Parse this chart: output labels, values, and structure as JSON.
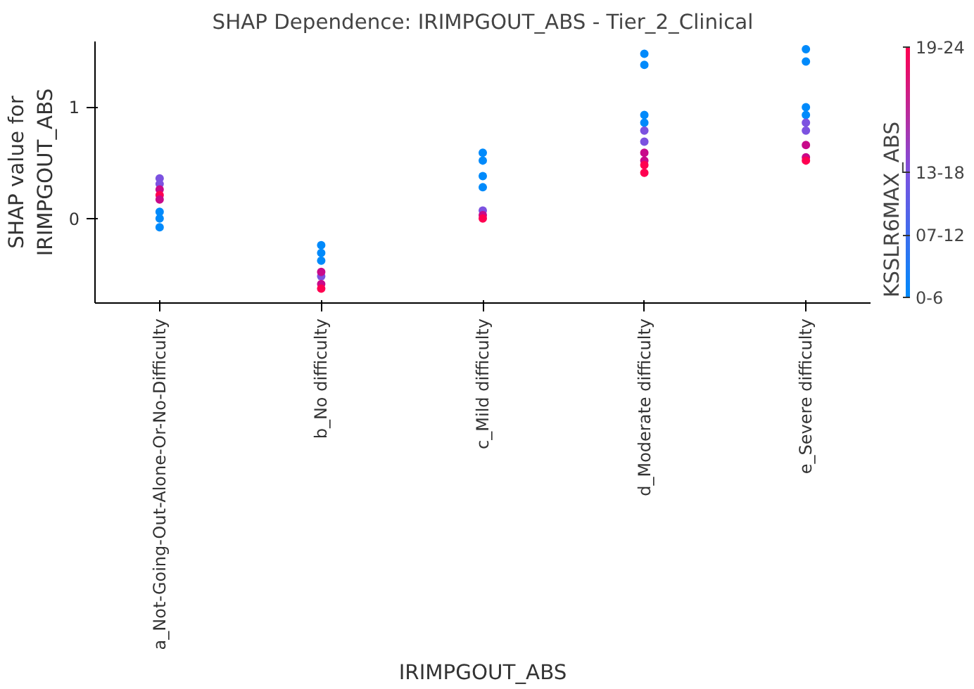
{
  "chart_data": {
    "type": "scatter",
    "title": "SHAP Dependence: IRIMPGOUT_ABS - Tier_2_Clinical",
    "xlabel": "IRIMPGOUT_ABS",
    "ylabel": "SHAP value for\nIRIMPGOUT_ABS",
    "clabel": "KSSLR6MAX_ABS",
    "categories": [
      "a_Not-Going-Out-Alone-Or-No-Difficulty",
      "b_No difficulty",
      "c_Mild difficulty",
      "d_Moderate difficulty",
      "e_Severe difficulty"
    ],
    "series": [
      {
        "values": [
          0.36,
          -0.24,
          0.59,
          1.48,
          1.52
        ],
        "colors": [
          "#7c52e0",
          "#008afb",
          "#008afb",
          "#008afb",
          "#008afb"
        ]
      },
      {
        "values": [
          0.31,
          -0.31,
          0.52,
          1.38,
          1.41
        ],
        "colors": [
          "#7c52e0",
          "#008afb",
          "#008afb",
          "#008afb",
          "#008afb"
        ]
      },
      {
        "values": [
          0.26,
          -0.38,
          0.38,
          0.93,
          1
        ],
        "colors": [
          "#c80a8a",
          "#008afb",
          "#008afb",
          "#008afb",
          "#008afb"
        ]
      },
      {
        "values": [
          0.21,
          -0.52,
          0.28,
          0.86,
          0.93
        ],
        "colors": [
          "#ff0051",
          "#7c52e0",
          "#008afb",
          "#008afb",
          "#008afb"
        ]
      },
      {
        "values": [
          0.17,
          -0.48,
          0.07,
          0.79,
          0.86
        ],
        "colors": [
          "#c80a8a",
          "#c80a8a",
          "#7c52e0",
          "#7c52e0",
          "#7c52e0"
        ]
      },
      {
        "values": [
          0.06,
          -0.59,
          0.03,
          0.69,
          0.79
        ],
        "colors": [
          "#008afb",
          "#c80a8a",
          "#c80a8a",
          "#7c52e0",
          "#7c52e0"
        ]
      },
      {
        "values": [
          0,
          -0.63,
          0,
          0.59,
          0.66
        ],
        "colors": [
          "#008afb",
          "#ff0051",
          "#ff0051",
          "#c80a8a",
          "#c80a8a"
        ]
      },
      {
        "values": [
          -0.08,
          null,
          null,
          0.52,
          0.55
        ],
        "colors": [
          "#008afb",
          null,
          null,
          "#c80a8a",
          "#c80a8a"
        ]
      },
      {
        "values": [
          null,
          null,
          null,
          0.48,
          0.52
        ],
        "colors": [
          null,
          null,
          null,
          "#ff0051",
          "#ff0051"
        ]
      },
      {
        "values": [
          null,
          null,
          null,
          0.41,
          null
        ],
        "colors": [
          null,
          null,
          null,
          "#ff0051",
          null
        ]
      }
    ],
    "cticks": [
      "0-6",
      "07-12",
      "13-18",
      null,
      "19-24"
    ],
    "ylim": [
      -0.76,
      1.59
    ],
    "yticks": [
      0,
      1
    ],
    "grid": false
  }
}
